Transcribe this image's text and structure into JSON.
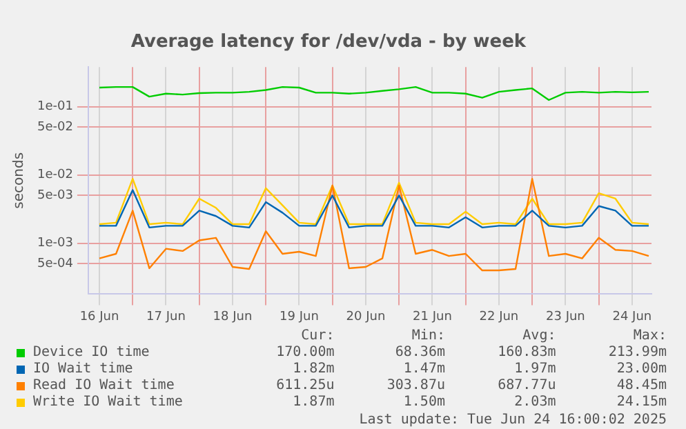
{
  "chart_data": {
    "type": "line",
    "title": "Average latency for /dev/vda - by week",
    "ylabel": "seconds",
    "log": "y",
    "grid": true,
    "legend": "bottom",
    "marker": "none",
    "line_style": "solid",
    "xlim": [
      "2025-06-16T08:00",
      "2025-06-24T19:00"
    ],
    "xticks": [
      {
        "value": "2025-06-16T12:00",
        "label": "16 Jun"
      },
      {
        "value": "2025-06-17T00:00",
        "label": null
      },
      {
        "value": "2025-06-17T12:00",
        "label": "17 Jun"
      },
      {
        "value": "2025-06-18T00:00",
        "label": null
      },
      {
        "value": "2025-06-18T12:00",
        "label": "18 Jun"
      },
      {
        "value": "2025-06-19T00:00",
        "label": null
      },
      {
        "value": "2025-06-19T12:00",
        "label": "19 Jun"
      },
      {
        "value": "2025-06-20T00:00",
        "label": null
      },
      {
        "value": "2025-06-20T12:00",
        "label": "20 Jun"
      },
      {
        "value": "2025-06-21T00:00",
        "label": null
      },
      {
        "value": "2025-06-21T12:00",
        "label": "21 Jun"
      },
      {
        "value": "2025-06-22T00:00",
        "label": null
      },
      {
        "value": "2025-06-22T12:00",
        "label": "22 Jun"
      },
      {
        "value": "2025-06-23T00:00",
        "label": null
      },
      {
        "value": "2025-06-23T12:00",
        "label": "23 Jun"
      },
      {
        "value": "2025-06-24T00:00",
        "label": null
      },
      {
        "value": "2025-06-24T12:00",
        "label": "24 Jun"
      }
    ],
    "ylim": [
      0.00018,
      0.38
    ],
    "yticks": [
      {
        "value": 0.0005,
        "label": "5e-04"
      },
      {
        "value": 0.001,
        "label": "1e-03"
      },
      {
        "value": 0.005,
        "label": "5e-03"
      },
      {
        "value": 0.01,
        "label": "1e-02"
      },
      {
        "value": 0.05,
        "label": "5e-02"
      },
      {
        "value": 0.1,
        "label": "1e-01"
      }
    ],
    "x": [
      "2025-06-16T12:00",
      "2025-06-16T18:00",
      "2025-06-17T00:00",
      "2025-06-17T06:00",
      "2025-06-17T12:00",
      "2025-06-17T18:00",
      "2025-06-18T00:00",
      "2025-06-18T06:00",
      "2025-06-18T12:00",
      "2025-06-18T18:00",
      "2025-06-19T00:00",
      "2025-06-19T06:00",
      "2025-06-19T12:00",
      "2025-06-19T18:00",
      "2025-06-20T00:00",
      "2025-06-20T06:00",
      "2025-06-20T12:00",
      "2025-06-20T18:00",
      "2025-06-21T00:00",
      "2025-06-21T06:00",
      "2025-06-21T12:00",
      "2025-06-21T18:00",
      "2025-06-22T00:00",
      "2025-06-22T06:00",
      "2025-06-22T12:00",
      "2025-06-22T18:00",
      "2025-06-23T00:00",
      "2025-06-23T06:00",
      "2025-06-23T12:00",
      "2025-06-23T18:00",
      "2025-06-24T00:00",
      "2025-06-24T06:00",
      "2025-06-24T12:00",
      "2025-06-24T18:00"
    ],
    "series": [
      {
        "name": "Device IO time",
        "color": "#00cc00",
        "values": [
          0.19,
          0.194,
          0.194,
          0.14,
          0.155,
          0.15,
          0.158,
          0.16,
          0.16,
          0.165,
          0.175,
          0.194,
          0.19,
          0.16,
          0.16,
          0.155,
          0.16,
          0.17,
          0.18,
          0.194,
          0.16,
          0.16,
          0.155,
          0.135,
          0.165,
          0.175,
          0.185,
          0.125,
          0.16,
          0.165,
          0.16,
          0.165,
          0.162,
          0.165
        ]
      },
      {
        "name": "IO Wait time",
        "color": "#0066b3",
        "values": [
          0.0018,
          0.0018,
          0.006,
          0.0017,
          0.0018,
          0.0018,
          0.003,
          0.0025,
          0.0018,
          0.0017,
          0.004,
          0.0028,
          0.0018,
          0.0018,
          0.005,
          0.0017,
          0.0018,
          0.0018,
          0.005,
          0.0018,
          0.0018,
          0.0017,
          0.0024,
          0.0017,
          0.0018,
          0.0018,
          0.003,
          0.0018,
          0.0017,
          0.0018,
          0.0035,
          0.003,
          0.0018,
          0.0018
        ]
      },
      {
        "name": "Read IO Wait time",
        "color": "#ff8000",
        "values": [
          0.0006,
          0.0007,
          0.003,
          0.00043,
          0.00083,
          0.00077,
          0.0011,
          0.0012,
          0.00045,
          0.00042,
          0.0015,
          0.0007,
          0.00075,
          0.00065,
          0.007,
          0.00043,
          0.00045,
          0.0006,
          0.007,
          0.0007,
          0.0008,
          0.00065,
          0.0007,
          0.0004,
          0.0004,
          0.00042,
          0.0088,
          0.00065,
          0.0007,
          0.0006,
          0.0012,
          0.0008,
          0.00077,
          0.00065
        ]
      },
      {
        "name": "Write IO Wait time",
        "color": "#ffcc00",
        "values": [
          0.0019,
          0.002,
          0.0088,
          0.0019,
          0.002,
          0.0019,
          0.0045,
          0.0033,
          0.0019,
          0.0019,
          0.0064,
          0.0036,
          0.002,
          0.0019,
          0.007,
          0.0019,
          0.0019,
          0.0019,
          0.0077,
          0.002,
          0.0019,
          0.0019,
          0.0029,
          0.0019,
          0.002,
          0.0019,
          0.0045,
          0.0019,
          0.0019,
          0.002,
          0.0054,
          0.0045,
          0.002,
          0.0019
        ]
      }
    ],
    "annotations": [
      "Cur:",
      "Min:",
      "Avg:",
      "Max:",
      "170.00m",
      "68.36m",
      "160.83m",
      "213.99m",
      "1.82m",
      "1.47m",
      "1.97m",
      "23.00m",
      "611.25u",
      "303.87u",
      "687.77u",
      "48.45m",
      "1.87m",
      "1.50m",
      "2.03m",
      "24.15m",
      "Last update: Tue Jun 24 16:00:02 2025"
    ]
  }
}
